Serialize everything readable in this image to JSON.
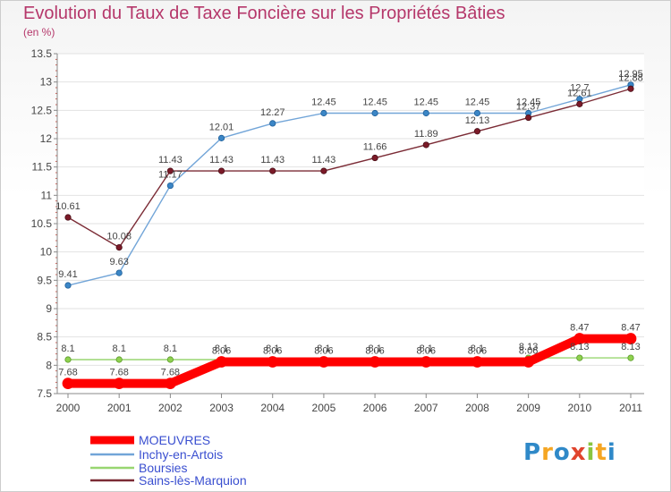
{
  "chart_data": {
    "type": "line",
    "title": "Evolution du Taux de Taxe Foncière sur les Propriétés Bâties",
    "ylabel": "(en %)",
    "xlabel": "",
    "ylim": [
      7.5,
      13.5
    ],
    "yticks": [
      "7.5",
      "8",
      "8.5",
      "9",
      "9.5",
      "10",
      "10.5",
      "11",
      "11.5",
      "12",
      "12.5",
      "13",
      "13.5"
    ],
    "categories": [
      "2000",
      "2001",
      "2002",
      "2003",
      "2004",
      "2005",
      "2006",
      "2007",
      "2008",
      "2009",
      "2010",
      "2011"
    ],
    "series": [
      {
        "name": "MOEUVRES",
        "color": "#ff0000",
        "values": [
          7.68,
          7.68,
          7.68,
          8.06,
          8.06,
          8.06,
          8.06,
          8.06,
          8.06,
          8.06,
          8.47,
          8.47
        ],
        "labels": [
          "7.68",
          "7.68",
          "7.68",
          "8.06",
          "8.06",
          "8.06",
          "8.06",
          "8.06",
          "8.06",
          "8.06",
          "8.47",
          "8.47"
        ]
      },
      {
        "name": "Inchy-en-Artois",
        "color": "#72a5d8",
        "values": [
          9.41,
          9.63,
          11.17,
          12.01,
          12.27,
          12.45,
          12.45,
          12.45,
          12.45,
          12.45,
          12.7,
          12.95
        ],
        "labels": [
          "9.41",
          "9.63",
          "11.17",
          "12.01",
          "12.27",
          "12.45",
          "12.45",
          "12.45",
          "12.45",
          "12.45",
          "12.7",
          "12.95"
        ]
      },
      {
        "name": "Boursies",
        "color": "#98d670",
        "values": [
          8.1,
          8.1,
          8.1,
          8.1,
          8.1,
          8.1,
          8.1,
          8.1,
          8.1,
          8.13,
          8.13,
          8.13
        ],
        "labels": [
          "8.1",
          "8.1",
          "8.1",
          "8.1",
          "8.1",
          "8.1",
          "8.1",
          "8.1",
          "8.1",
          "8.13",
          "8.13",
          "8.13"
        ]
      },
      {
        "name": "Sains-lès-Marquion",
        "color": "#7b2b35",
        "values": [
          10.61,
          10.08,
          11.43,
          11.43,
          11.43,
          11.43,
          11.66,
          11.89,
          12.13,
          12.37,
          12.61,
          12.88
        ],
        "labels": [
          "10.61",
          "10.08",
          "11.43",
          "11.43",
          "11.43",
          "11.43",
          "11.66",
          "11.89",
          "12.13",
          "12.37",
          "12.61",
          "12.88"
        ]
      }
    ]
  },
  "brand": {
    "text": "Proxiti",
    "letters": [
      "P",
      "r",
      "o",
      "x",
      "i",
      "t",
      "i"
    ],
    "colors": [
      "#2f89c8",
      "#f5a623",
      "#2f89c8",
      "#e0442d",
      "#89c540",
      "#f5a623",
      "#2f89c8"
    ]
  }
}
